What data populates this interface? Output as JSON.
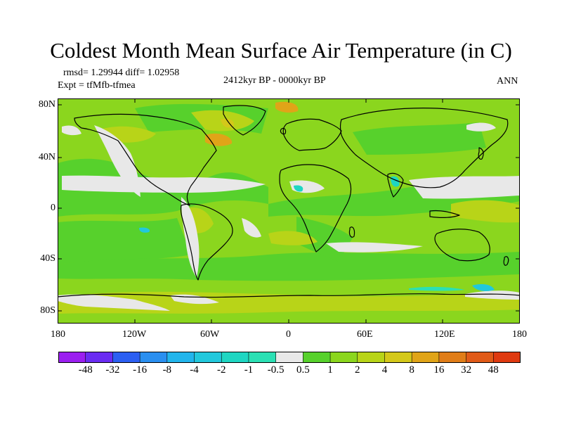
{
  "title": "Coldest Month Mean Surface Air Temperature (in C)",
  "stats": {
    "rmsd_diff": "rmsd= 1.29944 diff= 1.02958",
    "experiment": "Expt = tfMfb-tfmea",
    "period": "2412kyr BP - 0000kyr BP",
    "season": "ANN"
  },
  "map": {
    "projection": "cylindrical equidistant",
    "lon_range": [
      -180,
      180
    ],
    "lat_range": [
      -90,
      90
    ],
    "lat_ticks": [
      "80N",
      "40N",
      "0",
      "40S",
      "80S"
    ],
    "lat_tick_values": [
      80,
      40,
      0,
      -40,
      -80
    ],
    "lon_ticks": [
      "180",
      "120W",
      "60W",
      "0",
      "60E",
      "120E",
      "180"
    ],
    "lon_tick_values": [
      -180,
      -120,
      -60,
      0,
      60,
      120,
      180
    ]
  },
  "colorbar": {
    "labels": [
      "-48",
      "-32",
      "-16",
      "-8",
      "-4",
      "-2",
      "-1",
      "-0.5",
      "0.5",
      "1",
      "2",
      "4",
      "8",
      "16",
      "32",
      "48"
    ],
    "colors": [
      "#9b1ff0",
      "#6a2cf2",
      "#2c5ff2",
      "#2a8ff0",
      "#22b5ec",
      "#22c8dc",
      "#1fd6c2",
      "#2be0b4",
      "#e8e8e8",
      "#57d12c",
      "#8bd61e",
      "#b8d418",
      "#d4c81a",
      "#e0a418",
      "#e07d18",
      "#e05a18",
      "#df3a10"
    ]
  }
}
